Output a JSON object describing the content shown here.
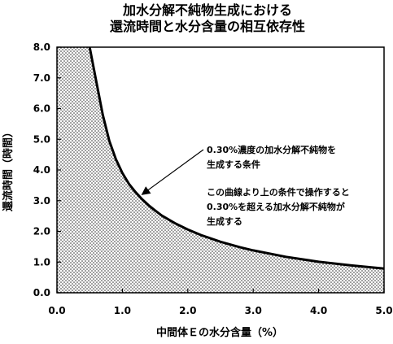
{
  "chart_data": {
    "type": "area",
    "title": [
      "加水分解不純物生成における",
      "還流時間と水分含量の相互依存性"
    ],
    "xlabel": "中間体Ｅの水分含量（%）",
    "ylabel": "還流時間（時間）",
    "xlim": [
      0.0,
      5.0
    ],
    "ylim": [
      0.0,
      8.0
    ],
    "x_ticks": [
      "0.0",
      "1.0",
      "2.0",
      "3.0",
      "4.0",
      "5.0"
    ],
    "y_ticks": [
      "0.0",
      "1.0",
      "2.0",
      "3.0",
      "4.0",
      "5.0",
      "6.0",
      "7.0",
      "8.0"
    ],
    "grid": false,
    "fill": "dotted pattern below curve",
    "series": [
      {
        "x": [
          0.5,
          0.6,
          0.7,
          0.8,
          0.9,
          1.0,
          1.1,
          1.2,
          1.3,
          1.4,
          1.5,
          1.6,
          1.8,
          2.0,
          2.2,
          2.5,
          2.8,
          3.0,
          3.5,
          4.0,
          4.5,
          5.0
        ],
        "y": [
          8.0,
          6.9,
          5.8,
          4.95,
          4.35,
          3.9,
          3.55,
          3.28,
          3.05,
          2.85,
          2.68,
          2.52,
          2.27,
          2.06,
          1.88,
          1.66,
          1.48,
          1.38,
          1.17,
          1.01,
          0.89,
          0.79
        ]
      }
    ],
    "annotations": [
      {
        "lines": [
          "0.30%濃度の加水分解不純物を",
          "生成する条件"
        ],
        "arrow_to": [
          1.3,
          3.2
        ]
      },
      {
        "lines": [
          "この曲線より上の条件で操作すると",
          "0.30%を超える加水分解不純物が",
          "生成する"
        ]
      }
    ]
  }
}
